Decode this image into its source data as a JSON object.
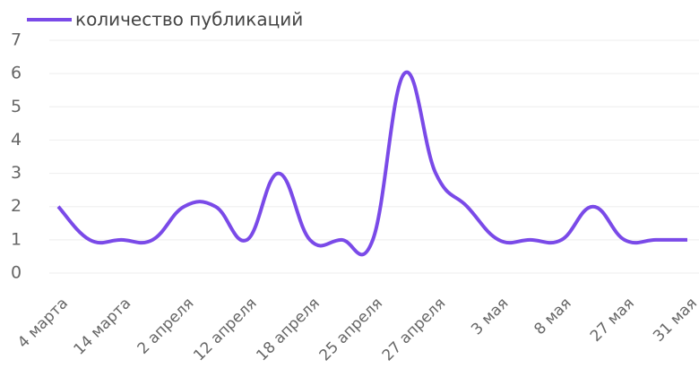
{
  "chart_data": {
    "type": "line",
    "categories": [
      "4 марта",
      null,
      "14 марта",
      null,
      "2 апреля",
      null,
      "12 апреля",
      null,
      "18 апреля",
      null,
      "25 апреля",
      null,
      "27 апреля",
      null,
      "3 мая",
      null,
      "8 мая",
      null,
      "27 мая",
      null,
      "31 мая"
    ],
    "series": [
      {
        "name": "количество публикаций",
        "color": "#7a4ae8",
        "values": [
          2,
          1,
          1,
          1,
          2,
          2,
          1,
          3,
          1,
          1,
          1,
          6,
          3,
          2,
          1,
          1,
          1,
          2,
          1,
          1,
          1
        ]
      }
    ],
    "ylim": [
      0,
      7
    ],
    "yticks": [
      0,
      1,
      2,
      3,
      4,
      5,
      6,
      7
    ],
    "grid": true,
    "legend": "top-left"
  }
}
